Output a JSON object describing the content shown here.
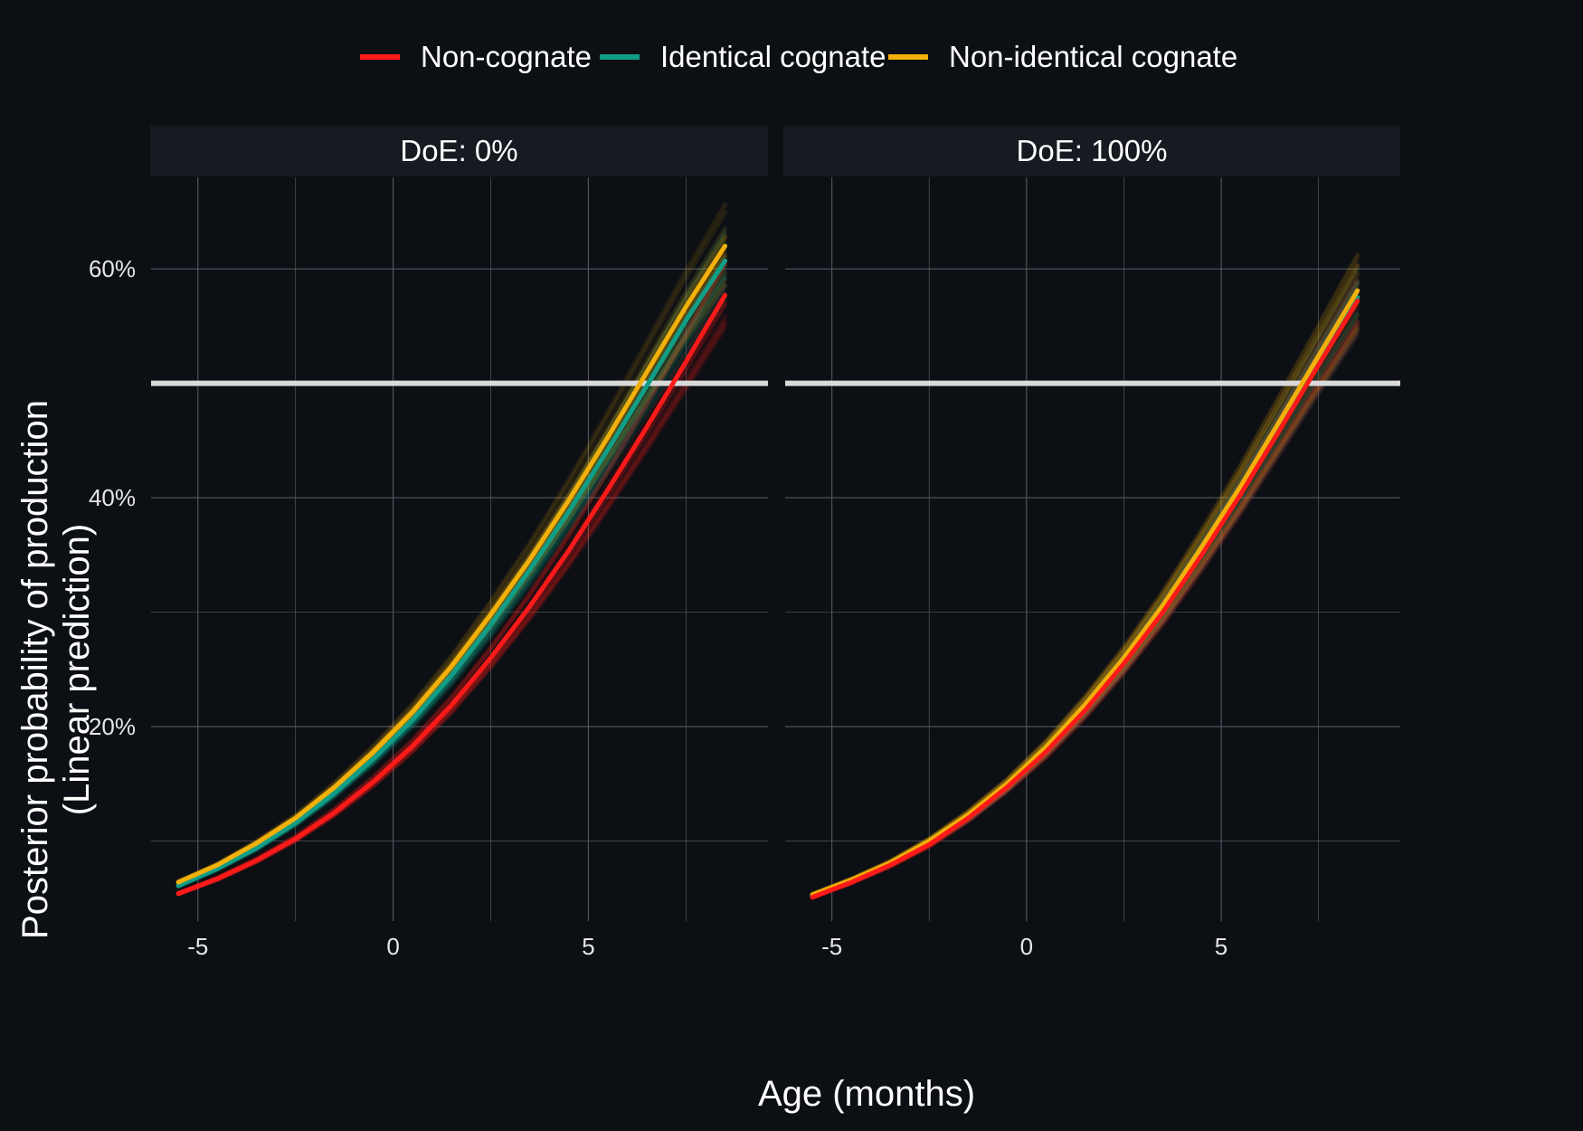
{
  "chart_data": {
    "type": "line",
    "xlabel": "Age (months)",
    "ylabel": "Posterior probability of production",
    "ylabel_sub": "(Linear prediction)",
    "legend_position": "top",
    "grid": true,
    "x": [
      -5.5,
      -4.5,
      -3.5,
      -2.5,
      -1.5,
      -0.5,
      0.5,
      1.5,
      2.5,
      3.5,
      4.5,
      5.5,
      6.5,
      7.5,
      8.5
    ],
    "xlim": [
      -6.2,
      9.6
    ],
    "ylim": [
      0.03,
      0.68
    ],
    "xticks": [
      "-5",
      "0",
      "5"
    ],
    "xtick_values": [
      -5,
      0,
      5
    ],
    "yticks": [
      "20%",
      "40%",
      "60%"
    ],
    "ytick_values": [
      0.2,
      0.4,
      0.6
    ],
    "reference_line_y": 0.5,
    "colors": {
      "Non-cognate": "#ff1a1a",
      "Identical cognate": "#119e86",
      "Non-identical cognate": "#f2b00a",
      "reference": "#d9d9d9",
      "strip_bg": "#161a21",
      "grid": "#555a60"
    },
    "series_names": [
      "Non-cognate",
      "Identical cognate",
      "Non-identical cognate"
    ],
    "facets": [
      {
        "label": "DoE: 0%",
        "series": [
          {
            "name": "Non-cognate",
            "values": [
              0.054,
              0.067,
              0.083,
              0.102,
              0.125,
              0.152,
              0.183,
              0.219,
              0.26,
              0.305,
              0.354,
              0.407,
              0.462,
              0.519,
              0.577
            ]
          },
          {
            "name": "Identical cognate",
            "values": [
              0.061,
              0.076,
              0.094,
              0.116,
              0.142,
              0.172,
              0.206,
              0.245,
              0.289,
              0.337,
              0.388,
              0.442,
              0.498,
              0.555,
              0.607
            ]
          },
          {
            "name": "Non-identical cognate",
            "values": [
              0.064,
              0.079,
              0.098,
              0.12,
              0.147,
              0.178,
              0.213,
              0.253,
              0.298,
              0.346,
              0.398,
              0.453,
              0.51,
              0.567,
              0.62
            ]
          }
        ]
      },
      {
        "label": "DoE: 100%",
        "series": [
          {
            "name": "Non-cognate",
            "values": [
              0.051,
              0.064,
              0.079,
              0.097,
              0.12,
              0.147,
              0.178,
              0.214,
              0.255,
              0.3,
              0.35,
              0.403,
              0.459,
              0.516,
              0.572
            ]
          },
          {
            "name": "Identical cognate",
            "values": [
              0.052,
              0.065,
              0.08,
              0.099,
              0.121,
              0.148,
              0.18,
              0.216,
              0.257,
              0.303,
              0.353,
              0.406,
              0.462,
              0.519,
              0.575
            ]
          },
          {
            "name": "Non-identical cognate",
            "values": [
              0.053,
              0.066,
              0.081,
              0.1,
              0.123,
              0.15,
              0.182,
              0.219,
              0.26,
              0.306,
              0.357,
              0.41,
              0.467,
              0.524,
              0.581
            ]
          }
        ]
      }
    ]
  }
}
